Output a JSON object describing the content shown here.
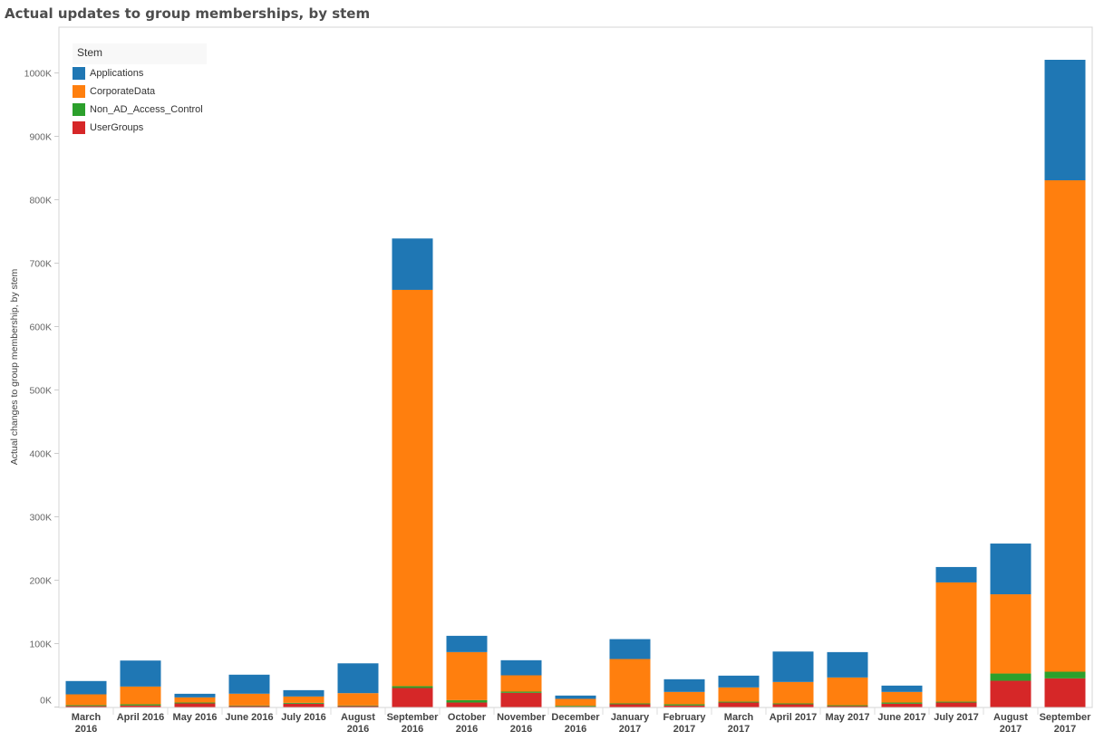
{
  "title": "Actual updates to group memberships, by stem",
  "chart_data": {
    "type": "bar",
    "stacked": true,
    "title": "Actual updates to group memberships, by stem",
    "xlabel": "",
    "ylabel": "Actual changes to group membership, by stem",
    "ylim": [
      0,
      1000
    ],
    "y_unit_suffix": "K",
    "yticks": [
      "0K",
      "100K",
      "200K",
      "300K",
      "400K",
      "500K",
      "600K",
      "700K",
      "800K",
      "900K",
      "1000K"
    ],
    "grid": false,
    "legend_title": "Stem",
    "legend_position": "top-left",
    "categories": [
      "March 2016",
      "April 2016",
      "May 2016",
      "June 2016",
      "July 2016",
      "August 2016",
      "September 2016",
      "October 2016",
      "November 2016",
      "December 2016",
      "January 2017",
      "February 2017",
      "March 2017",
      "April 2017",
      "May 2017",
      "June 2017",
      "July 2017",
      "August 2017",
      "September 2017"
    ],
    "series": [
      {
        "name": "UserGroups",
        "color": "#d62728",
        "values": [
          1.5,
          2.4,
          5.7,
          1.4,
          5.2,
          1.4,
          30,
          7.1,
          22.4,
          0.5,
          4.3,
          2.4,
          7.1,
          4.3,
          1.4,
          5.2,
          7.1,
          41.4,
          45.2
        ]
      },
      {
        "name": "Non_AD_Access_Control",
        "color": "#2ca02c",
        "values": [
          1.5,
          1.9,
          1.4,
          1,
          1.4,
          1,
          2.9,
          3.8,
          1.9,
          1.4,
          1.4,
          1.9,
          1.4,
          1.4,
          1.4,
          1.9,
          1.4,
          11.4,
          10.5
        ]
      },
      {
        "name": "CorporateData",
        "color": "#ff7f0e",
        "values": [
          17,
          28,
          8.1,
          18.6,
          10,
          19.5,
          625,
          75.7,
          25.7,
          11,
          70,
          19.5,
          22.4,
          33.8,
          43.8,
          16.7,
          188,
          125,
          775
        ]
      },
      {
        "name": "Applications",
        "color": "#1f77b4",
        "values": [
          21,
          41,
          5.7,
          30,
          10,
          47,
          81,
          25.7,
          23.8,
          5.2,
          31.4,
          20,
          18.6,
          48,
          40,
          10,
          24.3,
          80,
          190
        ]
      }
    ]
  }
}
